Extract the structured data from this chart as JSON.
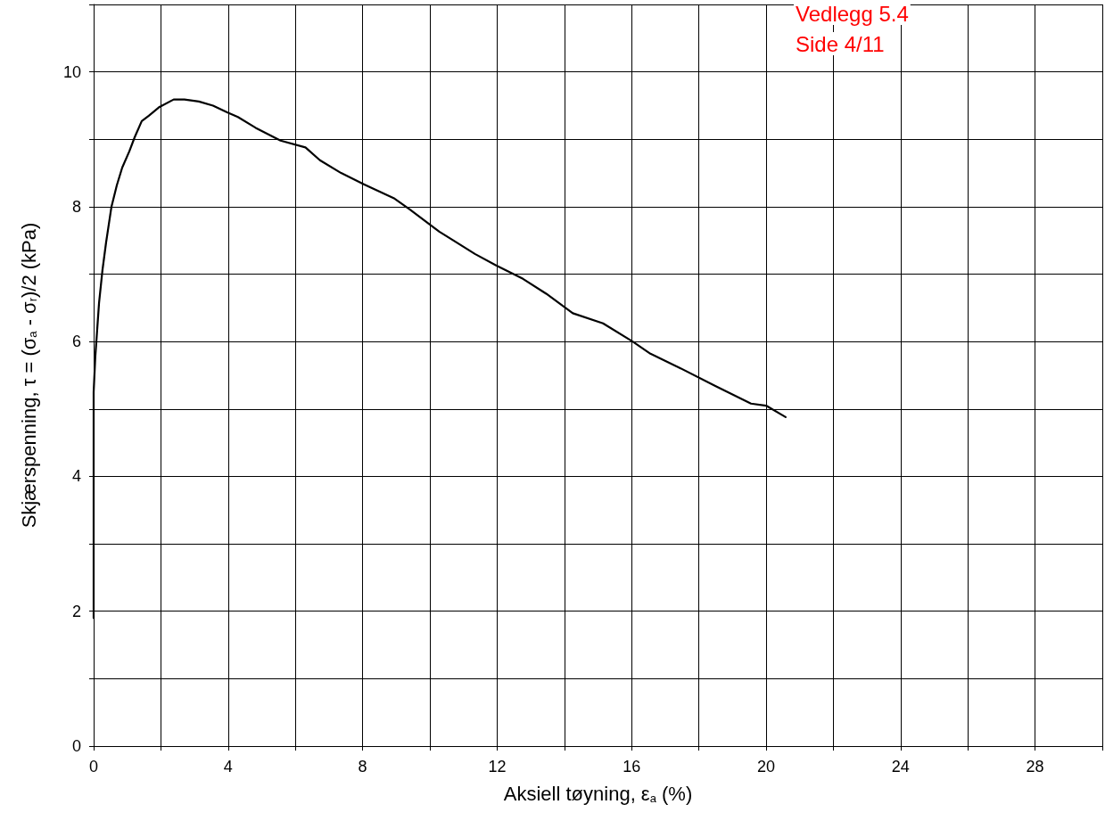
{
  "chart_data": {
    "type": "line",
    "xlabel": "Aksiell tøyning, ε$_{a}$ (%)",
    "ylabel": "Skjærspenning, τ = (σ$_{a}$ - σ$_{r}$)/2 (kPa)",
    "annotations": [
      "Vedlegg 5.4",
      "Side 4/11"
    ],
    "xlim": [
      0,
      30
    ],
    "ylim": [
      0,
      11
    ],
    "xticks": [
      0,
      {
        "value": 2,
        "label": null
      },
      4,
      {
        "value": 6,
        "label": null
      },
      8,
      {
        "value": 10,
        "label": null
      },
      12,
      {
        "value": 14,
        "label": null
      },
      16,
      {
        "value": 18,
        "label": null
      },
      20,
      {
        "value": 22,
        "label": null
      },
      24,
      {
        "value": 26,
        "label": null
      },
      28,
      {
        "value": 30,
        "label": null
      }
    ],
    "yticks": [
      0,
      {
        "value": 1,
        "label": null
      },
      2,
      {
        "value": 3,
        "label": null
      },
      4,
      {
        "value": 5,
        "label": null
      },
      6,
      {
        "value": 7,
        "label": null
      },
      8,
      {
        "value": 9,
        "label": null
      },
      10,
      {
        "value": 11,
        "label": null
      }
    ],
    "grid": true,
    "marker": "none",
    "line_style": "solid",
    "series": [
      {
        "color": "#000000",
        "x": [
          0,
          0,
          0.05,
          0.16,
          0.26,
          0.37,
          0.53,
          0.69,
          0.85,
          1.06,
          1.22,
          1.43,
          1.64,
          1.96,
          2.38,
          2.7,
          3.13,
          3.55,
          3.97,
          4.29,
          4.82,
          5.56,
          6.3,
          6.73,
          7.36,
          8.05,
          8.95,
          9.4,
          10.28,
          11.34,
          11.97,
          12.77,
          13.46,
          14.25,
          15.15,
          16.03,
          16.56,
          17.43,
          18.49,
          19.55,
          20.0,
          20.58
        ],
        "values": [
          1.9,
          5.25,
          5.78,
          6.57,
          7.05,
          7.47,
          8.0,
          8.32,
          8.58,
          8.82,
          9.03,
          9.27,
          9.35,
          9.48,
          9.59,
          9.59,
          9.56,
          9.5,
          9.4,
          9.33,
          9.17,
          8.98,
          8.88,
          8.69,
          8.5,
          8.33,
          8.12,
          7.96,
          7.63,
          7.3,
          7.13,
          6.93,
          6.71,
          6.42,
          6.27,
          6.0,
          5.82,
          5.61,
          5.34,
          5.08,
          5.05,
          4.88
        ]
      }
    ]
  }
}
